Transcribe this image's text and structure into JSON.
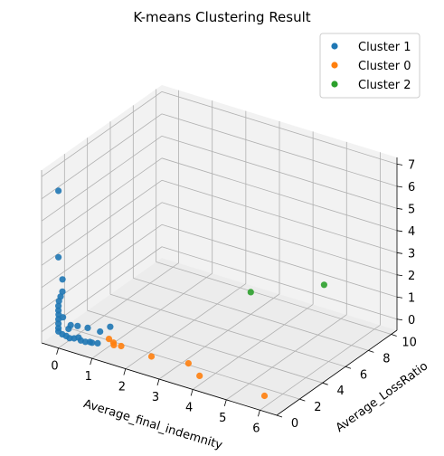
{
  "chart_data": {
    "type": "scatter",
    "projection": "3d",
    "title": "K-means Clustering Result",
    "xlabel": "Average_final_indemnity",
    "ylabel": "Average_LossRatio",
    "zlabel": "",
    "xlim": [
      -0.5,
      6.5
    ],
    "ylim": [
      0,
      10.5
    ],
    "zlim": [
      -0.5,
      7.3
    ],
    "x_ticks": [
      "0",
      "1",
      "2",
      "3",
      "4",
      "5",
      "6"
    ],
    "y_ticks": [
      "0",
      "2",
      "4",
      "6",
      "8",
      "10"
    ],
    "z_ticks": [
      "0",
      "1",
      "2",
      "3",
      "4",
      "5",
      "6",
      "7"
    ],
    "grid": true,
    "legend_position": "top-right",
    "series": [
      {
        "name": "Cluster 1",
        "color": "#1f77b4",
        "points": [
          [
            0.0,
            0.0,
            6.6
          ],
          [
            0.0,
            0.0,
            3.6
          ],
          [
            0.02,
            0.3,
            2.5
          ],
          [
            0.05,
            0.2,
            2.0
          ],
          [
            0.03,
            0.1,
            1.8
          ],
          [
            0.0,
            0.05,
            1.6
          ],
          [
            0.0,
            0.0,
            1.4
          ],
          [
            0.0,
            0.0,
            1.2
          ],
          [
            0.0,
            0.02,
            1.0
          ],
          [
            0.0,
            0.0,
            0.8
          ],
          [
            0.0,
            0.0,
            0.6
          ],
          [
            0.0,
            0.0,
            0.4
          ],
          [
            0.0,
            0.0,
            0.25
          ],
          [
            0.1,
            0.05,
            0.15
          ],
          [
            0.2,
            0.1,
            0.1
          ],
          [
            0.3,
            0.1,
            0.05
          ],
          [
            0.4,
            0.2,
            0.05
          ],
          [
            0.5,
            0.3,
            0.1
          ],
          [
            0.6,
            0.2,
            0.05
          ],
          [
            0.7,
            0.3,
            0.0
          ],
          [
            0.8,
            0.4,
            0.0
          ],
          [
            0.9,
            0.3,
            0.05
          ],
          [
            1.0,
            0.5,
            0.0
          ],
          [
            0.6,
            0.8,
            0.4
          ],
          [
            0.9,
            1.0,
            0.3
          ],
          [
            0.3,
            0.2,
            0.6
          ],
          [
            0.1,
            0.1,
            0.9
          ],
          [
            1.1,
            1.3,
            0.5
          ],
          [
            0.4,
            0.5,
            0.5
          ],
          [
            0.2,
            0.3,
            0.35
          ]
        ]
      },
      {
        "name": "Cluster 0",
        "color": "#ff7f0e",
        "points": [
          [
            1.3,
            0.6,
            0.3
          ],
          [
            1.5,
            0.4,
            0.3
          ],
          [
            1.55,
            0.3,
            0.25
          ],
          [
            1.7,
            0.5,
            0.2
          ],
          [
            2.6,
            0.5,
            0.15
          ],
          [
            3.6,
            0.8,
            0.2
          ],
          [
            4.1,
            0.3,
            0.05
          ],
          [
            6.0,
            0.4,
            0.0
          ]
        ]
      },
      {
        "name": "Cluster 2",
        "color": "#2ca02c",
        "points": [
          [
            3.0,
            8.0,
            0.5
          ],
          [
            4.5,
            10.0,
            0.8
          ]
        ]
      }
    ]
  }
}
